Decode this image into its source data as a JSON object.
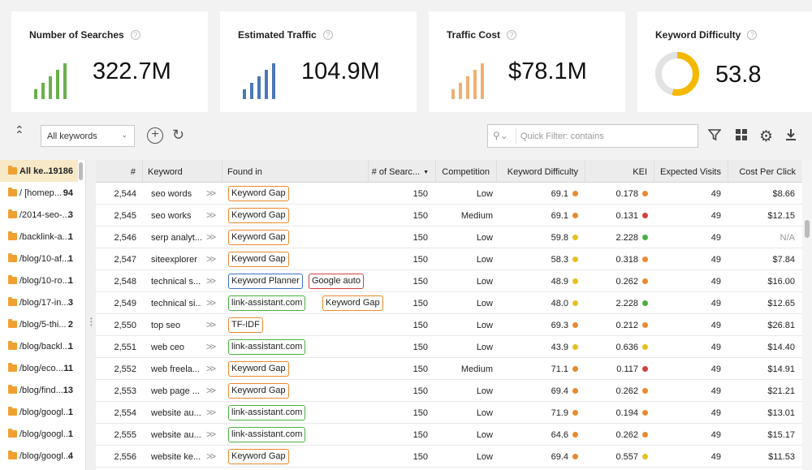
{
  "cards": [
    {
      "title": "Number of Searches",
      "value": "322.7M",
      "color": "#6ab04c",
      "type": "bars"
    },
    {
      "title": "Estimated Traffic",
      "value": "104.9M",
      "color": "#4a78b8",
      "type": "bars"
    },
    {
      "title": "Traffic Cost",
      "value": "$78.1M",
      "color": "#f0b070",
      "type": "bars"
    },
    {
      "title": "Keyword Difficulty",
      "value": "53.8",
      "color": "#f5b800",
      "type": "donut",
      "fraction": 0.538
    }
  ],
  "toolbar": {
    "select_value": "All keywords",
    "filter_placeholder": "Quick Filter: contains"
  },
  "sidebar": {
    "items": [
      {
        "name": "All ke...",
        "count": "19186",
        "active": true
      },
      {
        "name": "/ [homep...",
        "count": "94"
      },
      {
        "name": "/2014-seo-...",
        "count": "3"
      },
      {
        "name": "/backlink-a...",
        "count": "1"
      },
      {
        "name": "/blog/10-af...",
        "count": "1"
      },
      {
        "name": "/blog/10-ro...",
        "count": "1"
      },
      {
        "name": "/blog/17-in...",
        "count": "3"
      },
      {
        "name": "/blog/5-thi...",
        "count": "2"
      },
      {
        "name": "/blog/backl...",
        "count": "1"
      },
      {
        "name": "/blog/eco...",
        "count": "11"
      },
      {
        "name": "/blog/find...",
        "count": "13"
      },
      {
        "name": "/blog/googl...",
        "count": "1"
      },
      {
        "name": "/blog/googl...",
        "count": "1"
      },
      {
        "name": "/blog/googl...",
        "count": "4"
      }
    ]
  },
  "table": {
    "headers": {
      "num": "#",
      "keyword": "Keyword",
      "found_in": "Found in",
      "searches": "# of Searc...",
      "competition": "Competition",
      "difficulty": "Keyword Difficulty",
      "kei": "KEI",
      "visits": "Expected Visits",
      "cpc": "Cost Per Click"
    },
    "colors": {
      "orange": "#e88a2e",
      "green": "#4ab040",
      "blue": "#3c70c0",
      "red": "#d04040",
      "yellow": "#e6c020"
    },
    "rows": [
      {
        "num": "2,544",
        "keyword": "seo words",
        "tags": [
          {
            "label": "Keyword Gap",
            "color": "orange"
          }
        ],
        "searches": "150",
        "competition": "Low",
        "difficulty": "69.1",
        "dcolor": "orange",
        "kei": "0.178",
        "kcolor": "orange",
        "visits": "49",
        "cpc": "$8.66"
      },
      {
        "num": "2,545",
        "keyword": "seo works",
        "tags": [
          {
            "label": "Keyword Gap",
            "color": "orange"
          }
        ],
        "searches": "150",
        "competition": "Medium",
        "difficulty": "69.1",
        "dcolor": "orange",
        "kei": "0.131",
        "kcolor": "red",
        "visits": "49",
        "cpc": "$12.15"
      },
      {
        "num": "2,546",
        "keyword": "serp analyt...",
        "tags": [
          {
            "label": "Keyword Gap",
            "color": "orange"
          }
        ],
        "searches": "150",
        "competition": "Low",
        "difficulty": "59.8",
        "dcolor": "yellow",
        "kei": "2.228",
        "kcolor": "green",
        "visits": "49",
        "cpc": "N/A"
      },
      {
        "num": "2,547",
        "keyword": "siteexplorer",
        "tags": [
          {
            "label": "Keyword Gap",
            "color": "orange"
          }
        ],
        "searches": "150",
        "competition": "Low",
        "difficulty": "58.3",
        "dcolor": "yellow",
        "kei": "0.318",
        "kcolor": "orange",
        "visits": "49",
        "cpc": "$7.84"
      },
      {
        "num": "2,548",
        "keyword": "technical s...",
        "tags": [
          {
            "label": "Keyword Planner",
            "color": "blue"
          },
          {
            "label": "Google auto",
            "color": "red"
          }
        ],
        "searches": "150",
        "competition": "Low",
        "difficulty": "48.9",
        "dcolor": "yellow",
        "kei": "0.262",
        "kcolor": "orange",
        "visits": "49",
        "cpc": "$16.00"
      },
      {
        "num": "2,549",
        "keyword": "technical si...",
        "tags": [
          {
            "label": "link-assistant.com",
            "color": "green"
          },
          {
            "label": "Keyword Gap",
            "color": "orange"
          }
        ],
        "searches": "150",
        "competition": "Low",
        "difficulty": "48.0",
        "dcolor": "yellow",
        "kei": "2.228",
        "kcolor": "green",
        "visits": "49",
        "cpc": "$12.65"
      },
      {
        "num": "2,550",
        "keyword": "top seo",
        "tags": [
          {
            "label": "TF-IDF",
            "color": "orange"
          }
        ],
        "searches": "150",
        "competition": "Low",
        "difficulty": "69.3",
        "dcolor": "orange",
        "kei": "0.212",
        "kcolor": "orange",
        "visits": "49",
        "cpc": "$26.81"
      },
      {
        "num": "2,551",
        "keyword": "web ceo",
        "tags": [
          {
            "label": "link-assistant.com",
            "color": "green"
          }
        ],
        "searches": "150",
        "competition": "Low",
        "difficulty": "43.9",
        "dcolor": "yellow",
        "kei": "0.636",
        "kcolor": "yellow",
        "visits": "49",
        "cpc": "$14.40"
      },
      {
        "num": "2,552",
        "keyword": "web freela...",
        "tags": [
          {
            "label": "Keyword Gap",
            "color": "orange"
          }
        ],
        "searches": "150",
        "competition": "Medium",
        "difficulty": "71.1",
        "dcolor": "orange",
        "kei": "0.117",
        "kcolor": "red",
        "visits": "49",
        "cpc": "$14.91"
      },
      {
        "num": "2,553",
        "keyword": "web page ...",
        "tags": [
          {
            "label": "Keyword Gap",
            "color": "orange"
          }
        ],
        "searches": "150",
        "competition": "Low",
        "difficulty": "69.4",
        "dcolor": "orange",
        "kei": "0.262",
        "kcolor": "orange",
        "visits": "49",
        "cpc": "$21.21"
      },
      {
        "num": "2,554",
        "keyword": "website au...",
        "tags": [
          {
            "label": "link-assistant.com",
            "color": "green"
          }
        ],
        "searches": "150",
        "competition": "Low",
        "difficulty": "71.9",
        "dcolor": "orange",
        "kei": "0.194",
        "kcolor": "orange",
        "visits": "49",
        "cpc": "$13.01"
      },
      {
        "num": "2,555",
        "keyword": "website au...",
        "tags": [
          {
            "label": "link-assistant.com",
            "color": "green"
          }
        ],
        "searches": "150",
        "competition": "Low",
        "difficulty": "64.6",
        "dcolor": "orange",
        "kei": "0.262",
        "kcolor": "orange",
        "visits": "49",
        "cpc": "$15.17"
      },
      {
        "num": "2,556",
        "keyword": "website ke...",
        "tags": [
          {
            "label": "Keyword Gap",
            "color": "orange"
          }
        ],
        "searches": "150",
        "competition": "Low",
        "difficulty": "69.4",
        "dcolor": "orange",
        "kei": "0.557",
        "kcolor": "yellow",
        "visits": "49",
        "cpc": "$11.53"
      }
    ]
  }
}
